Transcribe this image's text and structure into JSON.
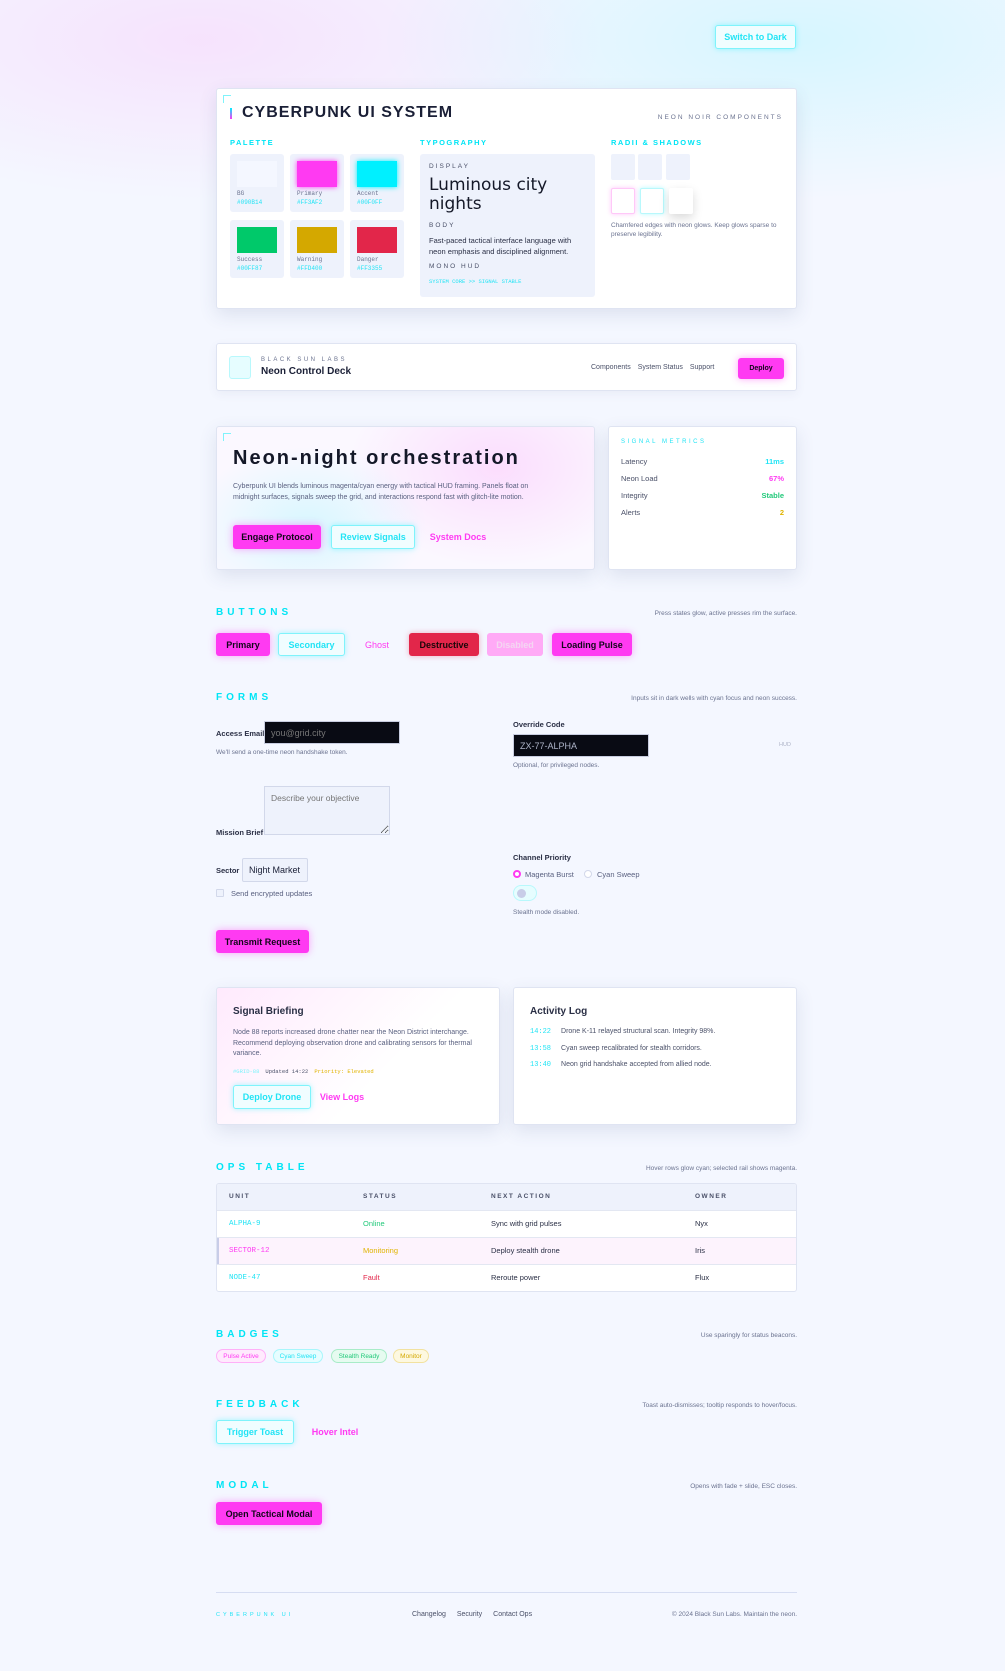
{
  "theme_toggle": "Switch to Dark",
  "system": {
    "title": "CYBERPUNK UI SYSTEM",
    "subtitle": "NEON NOIR COMPONENTS",
    "palette_h": "PALETTE",
    "typography_h": "TYPOGRAPHY",
    "radii_h": "RADII & SHADOWS",
    "palette": [
      {
        "name": "BG",
        "hex": "#090B14",
        "color": "#f4f7ff"
      },
      {
        "name": "Primary",
        "hex": "#FF3AF2",
        "color": "#ff3af2"
      },
      {
        "name": "Accent",
        "hex": "#00F0FF",
        "color": "#00f0ff"
      },
      {
        "name": "Success",
        "hex": "#00FF87",
        "color": "#00c96a"
      },
      {
        "name": "Warning",
        "hex": "#FFD400",
        "color": "#d4a800"
      },
      {
        "name": "Danger",
        "hex": "#FF3355",
        "color": "#e2264a"
      }
    ],
    "typo": {
      "display_l": "DISPLAY",
      "display": "Luminous city nights",
      "body_l": "BODY",
      "body": "Fast-paced tactical interface language with neon emphasis and disciplined alignment.",
      "mono_l": "MONO HUD",
      "mono": "SYSTEM CORE >> SIGNAL STABLE"
    },
    "radii_note": "Chamfered edges with neon glows. Keep glows sparse to preserve legibility."
  },
  "nav": {
    "kicker": "BLACK SUN LABS",
    "title": "Neon Control Deck",
    "links": [
      "Components",
      "System Status",
      "Support"
    ],
    "cta": "Deploy"
  },
  "hero": {
    "title": "Neon-night orchestration",
    "body": "Cyberpunk UI blends luminous magenta/cyan energy with tactical HUD framing. Panels float on midnight surfaces, signals sweep the grid, and interactions respond fast with glitch-lite motion.",
    "primary": "Engage Protocol",
    "secondary": "Review Signals",
    "ghost": "System Docs"
  },
  "metrics": {
    "title": "SIGNAL METRICS",
    "items": [
      {
        "label": "Latency",
        "value": "11ms",
        "color": "#22e4f5"
      },
      {
        "label": "Neon Load",
        "value": "67%",
        "color": "#ff3af2"
      },
      {
        "label": "Integrity",
        "value": "Stable",
        "color": "#22c97a"
      },
      {
        "label": "Alerts",
        "value": "2",
        "color": "#e0b400"
      }
    ]
  },
  "buttons": {
    "title": "BUTTONS",
    "note": "Press states glow, active presses rim the surface.",
    "primary": "Primary",
    "secondary": "Secondary",
    "ghost": "Ghost",
    "destructive": "Destructive",
    "disabled": "Disabled",
    "loading": "Loading Pulse"
  },
  "forms": {
    "title": "FORMS",
    "note": "Inputs sit in dark wells with cyan focus and neon success.",
    "email_label": "Access Email",
    "email_ph": "you@grid.city",
    "email_help": "We'll send a one-time neon handshake token.",
    "code_label": "Override Code",
    "code_value": "ZX-77-ALPHA",
    "code_hud": "HUD",
    "code_help": "Optional, for privileged nodes.",
    "brief_label": "Mission Brief",
    "brief_ph": "Describe your objective",
    "sector_label": "Sector",
    "sector_value": "Night Market",
    "checkbox": "Send encrypted updates",
    "channel_label": "Channel Priority",
    "radio1": "Magenta Burst",
    "radio2": "Cyan Sweep",
    "toggle_help": "Stealth mode disabled.",
    "submit": "Transmit Request"
  },
  "briefing": {
    "title": "Signal Briefing",
    "body": "Node 88 reports increased drone chatter near the Neon District interchange. Recommend deploying observation drone and calibrating sensors for thermal variance.",
    "tag": "#GRID-88",
    "updated": "Updated 14:22",
    "priority": "Priority: Elevated",
    "primary": "Deploy Drone",
    "ghost": "View Logs"
  },
  "log": {
    "title": "Activity Log",
    "items": [
      {
        "t": "14:22",
        "m": "Drone K-11 relayed structural scan. Integrity 98%."
      },
      {
        "t": "13:58",
        "m": "Cyan sweep recalibrated for stealth corridors."
      },
      {
        "t": "13:40",
        "m": "Neon grid handshake accepted from allied node."
      }
    ]
  },
  "table": {
    "title": "OPS TABLE",
    "note": "Hover rows glow cyan; selected rail shows magenta.",
    "headers": [
      "UNIT",
      "STATUS",
      "NEXT ACTION",
      "OWNER"
    ],
    "rows": [
      {
        "unit": "ALPHA-9",
        "status": "Online",
        "action": "Sync with grid pulses",
        "owner": "Nyx"
      },
      {
        "unit": "SECTOR-12",
        "status": "Monitoring",
        "action": "Deploy stealth drone",
        "owner": "Iris"
      },
      {
        "unit": "NODE-47",
        "status": "Fault",
        "action": "Reroute power",
        "owner": "Flux"
      }
    ]
  },
  "badges": {
    "title": "BADGES",
    "note": "Use sparingly for status beacons.",
    "items": [
      "Pulse Active",
      "Cyan Sweep",
      "Stealth Ready",
      "Monitor"
    ]
  },
  "feedback": {
    "title": "FEEDBACK",
    "note": "Toast auto-dismisses; tooltip responds to hover/focus.",
    "toast": "Trigger Toast",
    "tooltip": "Hover Intel"
  },
  "modal": {
    "title": "MODAL",
    "note": "Opens with fade + slide, ESC closes.",
    "open": "Open Tactical Modal"
  },
  "footer": {
    "brand": "CYBERPUNK UI",
    "links": [
      "Changelog",
      "Security",
      "Contact Ops"
    ],
    "copy": "© 2024 Black Sun Labs. Maintain the neon."
  }
}
